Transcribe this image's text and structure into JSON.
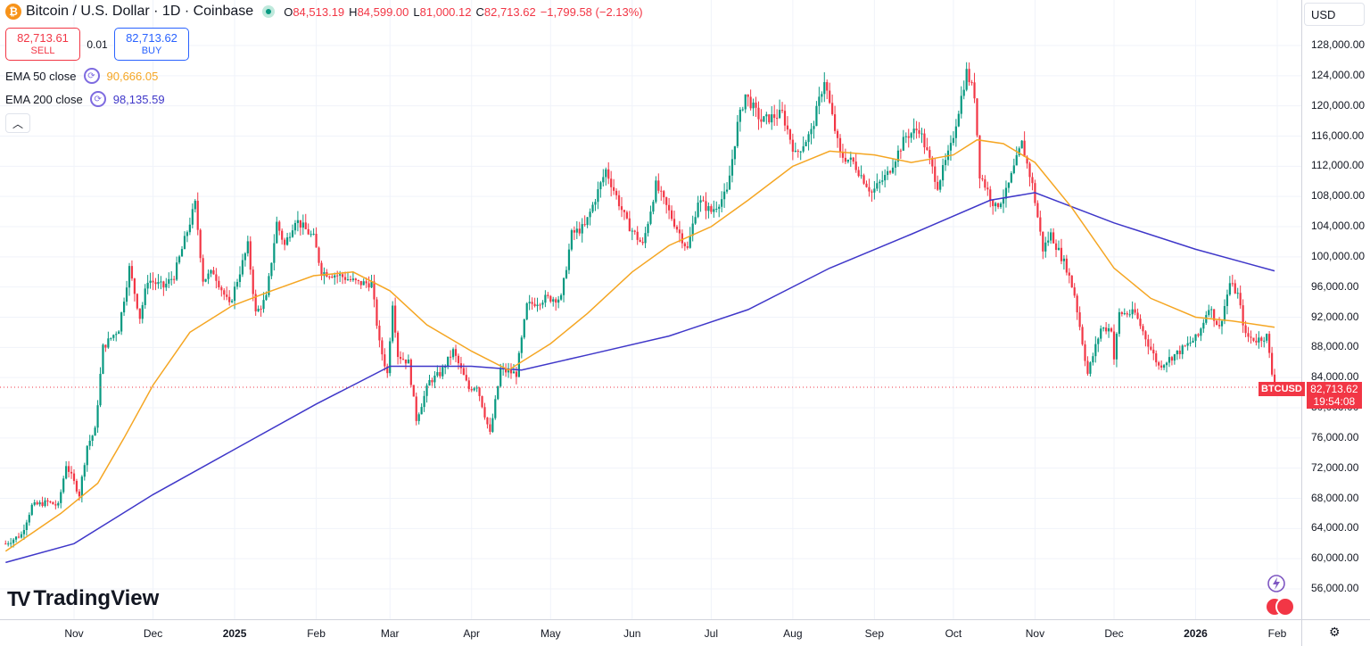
{
  "header": {
    "logo_letter": "₿",
    "symbol_title": "Bitcoin / U.S. Dollar · 1D · Coinbase",
    "ohlc": {
      "o_key": "O",
      "o_val": "84,513.19",
      "h_key": "H",
      "h_val": "84,599.00",
      "l_key": "L",
      "l_val": "81,000.12",
      "c_key": "C",
      "c_val": "82,713.62",
      "change": "−1,799.58 (−2.13%)"
    }
  },
  "trade": {
    "sell_price": "82,713.61",
    "sell_label": "SELL",
    "spread": "0.01",
    "buy_price": "82,713.62",
    "buy_label": "BUY"
  },
  "indicators": [
    {
      "label": "EMA 50 close",
      "value": "90,666.05",
      "color": "#f5a623"
    },
    {
      "label": "EMA 200 close",
      "value": "98,135.59",
      "color": "#3f37c9"
    }
  ],
  "currency": "USD",
  "price_tag": {
    "symbol": "BTCUSD",
    "price": "82,713.62",
    "countdown": "19:54:08"
  },
  "watermark": "TradingView",
  "chart_data": {
    "type": "candlestick",
    "title": "Bitcoin / U.S. Dollar · 1D · Coinbase",
    "y_ticks": [
      "128,000.00",
      "124,000.00",
      "120,000.00",
      "116,000.00",
      "112,000.00",
      "108,000.00",
      "104,000.00",
      "100,000.00",
      "96,000.00",
      "92,000.00",
      "88,000.00",
      "84,000.00",
      "80,000.00",
      "76,000.00",
      "72,000.00",
      "68,000.00",
      "64,000.00",
      "60,000.00",
      "56,000.00"
    ],
    "y_tick_values": [
      128000,
      124000,
      120000,
      116000,
      112000,
      108000,
      104000,
      100000,
      96000,
      92000,
      88000,
      84000,
      80000,
      76000,
      72000,
      68000,
      64000,
      60000,
      56000
    ],
    "ylim": [
      53000,
      131500
    ],
    "x_ticks": [
      {
        "label": "Nov",
        "date": "2024-11-01",
        "bold": false
      },
      {
        "label": "Dec",
        "date": "2024-12-01",
        "bold": false
      },
      {
        "label": "2025",
        "date": "2025-01-01",
        "bold": true
      },
      {
        "label": "Feb",
        "date": "2025-02-01",
        "bold": false
      },
      {
        "label": "Mar",
        "date": "2025-03-01",
        "bold": false
      },
      {
        "label": "Apr",
        "date": "2025-04-01",
        "bold": false
      },
      {
        "label": "May",
        "date": "2025-05-01",
        "bold": false
      },
      {
        "label": "Jun",
        "date": "2025-06-01",
        "bold": false
      },
      {
        "label": "Jul",
        "date": "2025-07-01",
        "bold": false
      },
      {
        "label": "Aug",
        "date": "2025-08-01",
        "bold": false
      },
      {
        "label": "Sep",
        "date": "2025-09-01",
        "bold": false
      },
      {
        "label": "Oct",
        "date": "2025-10-01",
        "bold": false
      },
      {
        "label": "Nov",
        "date": "2025-11-01",
        "bold": false
      },
      {
        "label": "Dec",
        "date": "2025-12-01",
        "bold": false
      },
      {
        "label": "2026",
        "date": "2026-01-01",
        "bold": true
      },
      {
        "label": "Feb",
        "date": "2026-02-01",
        "bold": false
      }
    ],
    "last_price": 82713.62,
    "colors": {
      "up": "#089981",
      "down": "#f23645",
      "ema50": "#f5a623",
      "ema200": "#3f37c9",
      "grid": "#f0f3fa"
    },
    "price_path": [
      [
        "2024-10-06",
        62000
      ],
      [
        "2024-10-12",
        63200
      ],
      [
        "2024-10-16",
        67000
      ],
      [
        "2024-10-22",
        67500
      ],
      [
        "2024-10-26",
        67000
      ],
      [
        "2024-10-29",
        72500
      ],
      [
        "2024-11-03",
        68500
      ],
      [
        "2024-11-06",
        75000
      ],
      [
        "2024-11-09",
        77000
      ],
      [
        "2024-11-12",
        88000
      ],
      [
        "2024-11-18",
        90500
      ],
      [
        "2024-11-22",
        98500
      ],
      [
        "2024-11-26",
        92000
      ],
      [
        "2024-11-29",
        97000
      ],
      [
        "2024-12-05",
        96000
      ],
      [
        "2024-12-09",
        97500
      ],
      [
        "2024-12-12",
        101000
      ],
      [
        "2024-12-17",
        107000
      ],
      [
        "2024-12-20",
        97000
      ],
      [
        "2024-12-24",
        98000
      ],
      [
        "2024-12-30",
        93500
      ],
      [
        "2025-01-06",
        101500
      ],
      [
        "2025-01-09",
        92500
      ],
      [
        "2025-01-13",
        94500
      ],
      [
        "2025-01-17",
        104500
      ],
      [
        "2025-01-20",
        101500
      ],
      [
        "2025-01-24",
        105000
      ],
      [
        "2025-01-31",
        102500
      ],
      [
        "2025-02-03",
        98000
      ],
      [
        "2025-02-10",
        97500
      ],
      [
        "2025-02-17",
        96500
      ],
      [
        "2025-02-22",
        96500
      ],
      [
        "2025-02-25",
        88500
      ],
      [
        "2025-02-28",
        84500
      ],
      [
        "2025-03-02",
        94000
      ],
      [
        "2025-03-04",
        87000
      ],
      [
        "2025-03-08",
        86000
      ],
      [
        "2025-03-11",
        78500
      ],
      [
        "2025-03-16",
        83500
      ],
      [
        "2025-03-20",
        84500
      ],
      [
        "2025-03-25",
        87500
      ],
      [
        "2025-03-31",
        82500
      ],
      [
        "2025-04-03",
        83000
      ],
      [
        "2025-04-08",
        76500
      ],
      [
        "2025-04-12",
        85000
      ],
      [
        "2025-04-18",
        84500
      ],
      [
        "2025-04-22",
        93500
      ],
      [
        "2025-04-29",
        94500
      ],
      [
        "2025-05-05",
        94500
      ],
      [
        "2025-05-09",
        103000
      ],
      [
        "2025-05-14",
        104000
      ],
      [
        "2025-05-22",
        111500
      ],
      [
        "2025-05-30",
        104500
      ],
      [
        "2025-06-05",
        101500
      ],
      [
        "2025-06-10",
        109500
      ],
      [
        "2025-06-17",
        104500
      ],
      [
        "2025-06-22",
        101000
      ],
      [
        "2025-06-26",
        107500
      ],
      [
        "2025-07-01",
        106000
      ],
      [
        "2025-07-07",
        108500
      ],
      [
        "2025-07-11",
        117500
      ],
      [
        "2025-07-14",
        121500
      ],
      [
        "2025-07-20",
        118000
      ],
      [
        "2025-07-28",
        119000
      ],
      [
        "2025-08-02",
        113500
      ],
      [
        "2025-08-08",
        116500
      ],
      [
        "2025-08-13",
        123500
      ],
      [
        "2025-08-19",
        113500
      ],
      [
        "2025-08-24",
        112500
      ],
      [
        "2025-08-31",
        108500
      ],
      [
        "2025-09-06",
        111000
      ],
      [
        "2025-09-13",
        116000
      ],
      [
        "2025-09-18",
        117000
      ],
      [
        "2025-09-25",
        109500
      ],
      [
        "2025-09-30",
        114500
      ],
      [
        "2025-10-06",
        124500
      ],
      [
        "2025-10-09",
        121500
      ],
      [
        "2025-10-11",
        111000
      ],
      [
        "2025-10-17",
        106500
      ],
      [
        "2025-10-21",
        108500
      ],
      [
        "2025-10-27",
        115000
      ],
      [
        "2025-10-31",
        109500
      ],
      [
        "2025-11-04",
        101000
      ],
      [
        "2025-11-07",
        103000
      ],
      [
        "2025-11-13",
        98500
      ],
      [
        "2025-11-16",
        95000
      ],
      [
        "2025-11-21",
        84500
      ],
      [
        "2025-11-26",
        90500
      ],
      [
        "2025-11-30",
        90500
      ],
      [
        "2025-12-01",
        86500
      ],
      [
        "2025-12-03",
        92500
      ],
      [
        "2025-12-09",
        92500
      ],
      [
        "2025-12-14",
        88500
      ],
      [
        "2025-12-18",
        85500
      ],
      [
        "2025-12-26",
        87500
      ],
      [
        "2026-01-02",
        89500
      ],
      [
        "2026-01-06",
        93500
      ],
      [
        "2026-01-10",
        90500
      ],
      [
        "2026-01-14",
        96500
      ],
      [
        "2026-01-17",
        95000
      ],
      [
        "2026-01-20",
        89500
      ],
      [
        "2026-01-24",
        89000
      ],
      [
        "2026-01-28",
        89500
      ],
      [
        "2026-01-30",
        84500
      ],
      [
        "2026-01-31",
        82713.62
      ]
    ],
    "ema50_path": [
      [
        "2024-10-06",
        61000
      ],
      [
        "2024-10-27",
        66000
      ],
      [
        "2024-11-10",
        70000
      ],
      [
        "2024-11-20",
        76000
      ],
      [
        "2024-12-01",
        83000
      ],
      [
        "2024-12-15",
        90000
      ],
      [
        "2024-12-31",
        93500
      ],
      [
        "2025-01-15",
        95500
      ],
      [
        "2025-01-31",
        97500
      ],
      [
        "2025-02-15",
        98000
      ],
      [
        "2025-03-01",
        95500
      ],
      [
        "2025-03-15",
        91000
      ],
      [
        "2025-04-01",
        87500
      ],
      [
        "2025-04-15",
        85000
      ],
      [
        "2025-05-01",
        88500
      ],
      [
        "2025-05-15",
        92500
      ],
      [
        "2025-06-01",
        98000
      ],
      [
        "2025-06-15",
        101500
      ],
      [
        "2025-07-01",
        104000
      ],
      [
        "2025-07-15",
        107500
      ],
      [
        "2025-08-01",
        112000
      ],
      [
        "2025-08-15",
        114000
      ],
      [
        "2025-09-01",
        113500
      ],
      [
        "2025-09-15",
        112500
      ],
      [
        "2025-10-01",
        113500
      ],
      [
        "2025-10-10",
        115500
      ],
      [
        "2025-10-20",
        115000
      ],
      [
        "2025-11-01",
        112500
      ],
      [
        "2025-11-15",
        106500
      ],
      [
        "2025-12-01",
        98500
      ],
      [
        "2025-12-15",
        94500
      ],
      [
        "2026-01-01",
        92000
      ],
      [
        "2026-01-15",
        91500
      ],
      [
        "2026-01-31",
        90666.05
      ]
    ],
    "ema200_path": [
      [
        "2024-10-06",
        59500
      ],
      [
        "2024-11-01",
        62000
      ],
      [
        "2024-12-01",
        68500
      ],
      [
        "2025-01-01",
        74500
      ],
      [
        "2025-02-01",
        80500
      ],
      [
        "2025-03-01",
        85500
      ],
      [
        "2025-04-01",
        85500
      ],
      [
        "2025-04-20",
        85000
      ],
      [
        "2025-05-15",
        87000
      ],
      [
        "2025-06-15",
        89500
      ],
      [
        "2025-07-15",
        93000
      ],
      [
        "2025-08-15",
        98500
      ],
      [
        "2025-09-15",
        103000
      ],
      [
        "2025-10-15",
        107500
      ],
      [
        "2025-11-01",
        108500
      ],
      [
        "2025-12-01",
        104500
      ],
      [
        "2026-01-01",
        101000
      ],
      [
        "2026-01-31",
        98135.59
      ]
    ]
  }
}
